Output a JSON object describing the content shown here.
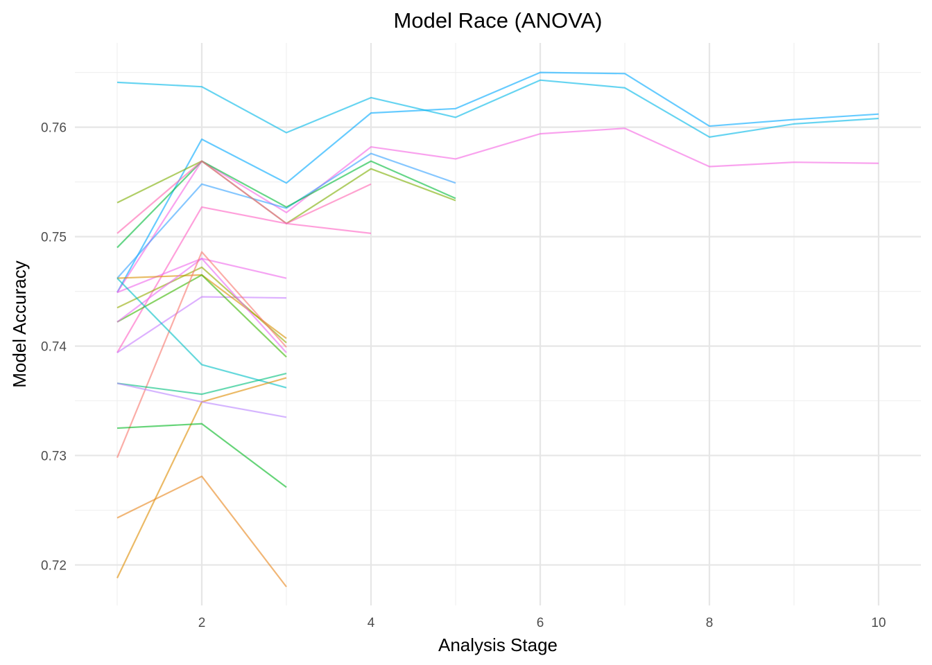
{
  "chart_data": {
    "type": "line",
    "title": "Model Race (ANOVA)",
    "xlabel": "Analysis Stage",
    "ylabel": "Model Accuracy",
    "xlim": [
      0.5,
      10.5
    ],
    "ylim": [
      0.7163,
      0.7677
    ],
    "x_ticks": [
      2,
      4,
      6,
      8,
      10
    ],
    "x_tick_labels": [
      "2",
      "4",
      "6",
      "8",
      "10"
    ],
    "x_minor_ticks": [
      1,
      3,
      5,
      7,
      9
    ],
    "y_ticks": [
      0.72,
      0.73,
      0.74,
      0.75,
      0.76
    ],
    "y_tick_labels": [
      "0.72",
      "0.73",
      "0.74",
      "0.75",
      "0.76"
    ],
    "y_minor_ticks": [
      0.725,
      0.735,
      0.745,
      0.755,
      0.765
    ],
    "grid": true,
    "legend": "none",
    "series": [
      {
        "color": "#00A9FF",
        "x": [
          1,
          2,
          3,
          4,
          5,
          6,
          7,
          8,
          9,
          10
        ],
        "y": [
          0.7449,
          0.7589,
          0.7549,
          0.7613,
          0.7617,
          0.765,
          0.7649,
          0.7601,
          0.7607,
          0.7612
        ]
      },
      {
        "color": "#00B8E7",
        "x": [
          1,
          2,
          3,
          4,
          5,
          6,
          7,
          8,
          9,
          10
        ],
        "y": [
          0.7641,
          0.7637,
          0.7595,
          0.7627,
          0.7609,
          0.7643,
          0.7636,
          0.7591,
          0.7603,
          0.7608
        ]
      },
      {
        "color": "#F564E3",
        "x": [
          1,
          2,
          3,
          4,
          5,
          6,
          7,
          8,
          9,
          10
        ],
        "y": [
          0.7449,
          0.7569,
          0.7522,
          0.7582,
          0.7571,
          0.7594,
          0.7599,
          0.7564,
          0.7568,
          0.7567
        ]
      },
      {
        "color": "#35A2FF",
        "x": [
          1,
          2,
          3,
          4,
          5
        ],
        "y": [
          0.7462,
          0.7548,
          0.7526,
          0.7576,
          0.7549
        ]
      },
      {
        "color": "#00BA38",
        "x": [
          1,
          2,
          3,
          4,
          5
        ],
        "y": [
          0.749,
          0.7569,
          0.7527,
          0.7569,
          0.7535
        ]
      },
      {
        "color": "#7CAE00",
        "x": [
          1,
          2,
          3,
          4,
          5
        ],
        "y": [
          0.7531,
          0.7569,
          0.7512,
          0.7562,
          0.7533
        ]
      },
      {
        "color": "#FF64B0",
        "x": [
          1,
          2,
          3,
          4
        ],
        "y": [
          0.7503,
          0.7569,
          0.7512,
          0.7548
        ]
      },
      {
        "color": "#FF61C3",
        "x": [
          1,
          2,
          3,
          4
        ],
        "y": [
          0.7394,
          0.7527,
          0.7512,
          0.7503
        ]
      },
      {
        "color": "#EF67EB",
        "x": [
          1,
          2,
          3
        ],
        "y": [
          0.7449,
          0.748,
          0.7462
        ]
      },
      {
        "color": "#C77CFF",
        "x": [
          1,
          2,
          3
        ],
        "y": [
          0.7394,
          0.7445,
          0.7444
        ]
      },
      {
        "color": "#D89000",
        "x": [
          1,
          2,
          3
        ],
        "y": [
          0.7462,
          0.7465,
          0.7407
        ]
      },
      {
        "color": "#93AA00",
        "x": [
          1,
          2,
          3
        ],
        "y": [
          0.7435,
          0.7472,
          0.7403
        ]
      },
      {
        "color": "#39B600",
        "x": [
          1,
          2,
          3
        ],
        "y": [
          0.7422,
          0.7465,
          0.739
        ]
      },
      {
        "color": "#E76BF3",
        "x": [
          1,
          2,
          3
        ],
        "y": [
          0.7422,
          0.748,
          0.7394
        ]
      },
      {
        "color": "#F8766D",
        "x": [
          1,
          2,
          3
        ],
        "y": [
          0.7298,
          0.7486,
          0.7399
        ]
      },
      {
        "color": "#00BFC4",
        "x": [
          1,
          2,
          3
        ],
        "y": [
          0.7462,
          0.7383,
          0.7362
        ]
      },
      {
        "color": "#00BF7D",
        "x": [
          1,
          2,
          3
        ],
        "y": [
          0.7366,
          0.7356,
          0.7375
        ]
      },
      {
        "color": "#DE8C00",
        "x": [
          1,
          2,
          3
        ],
        "y": [
          0.7188,
          0.7349,
          0.7371
        ]
      },
      {
        "color": "#B983FF",
        "x": [
          1,
          2,
          3
        ],
        "y": [
          0.7366,
          0.7349,
          0.7335
        ]
      },
      {
        "color": "#00B81F",
        "x": [
          1,
          2,
          3
        ],
        "y": [
          0.7325,
          0.7329,
          0.7271
        ]
      },
      {
        "color": "#E7861B",
        "x": [
          1,
          2,
          3
        ],
        "y": [
          0.7243,
          0.7281,
          0.718
        ]
      }
    ]
  }
}
